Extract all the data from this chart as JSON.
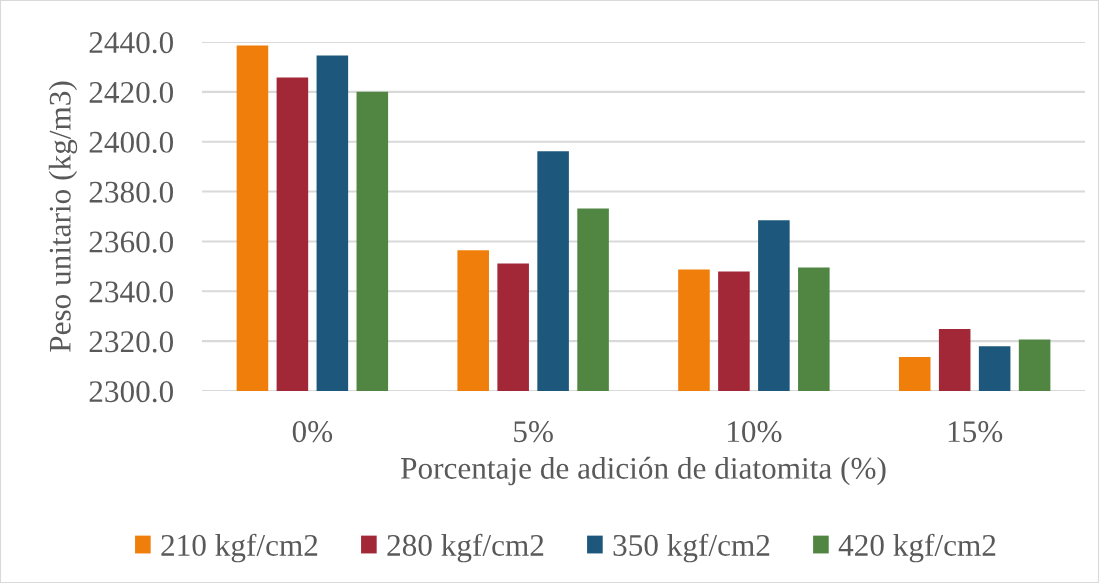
{
  "chart_data": {
    "type": "bar",
    "xlabel": "Porcentaje de adición de diatomita (%)",
    "ylabel": "Peso unitario (kg/m3)",
    "categories": [
      "0%",
      "5%",
      "10%",
      "15%"
    ],
    "series": [
      {
        "name": "210 kgf/cm2",
        "color": "#ef7f0a",
        "values": [
          2438.6,
          2356.5,
          2348.7,
          2313.6
        ]
      },
      {
        "name": "280 kgf/cm2",
        "color": "#a22838",
        "values": [
          2425.8,
          2351.1,
          2347.9,
          2324.9
        ]
      },
      {
        "name": "350 kgf/cm2",
        "color": "#1d587c",
        "values": [
          2434.6,
          2396.2,
          2368.5,
          2318.0
        ]
      },
      {
        "name": "420 kgf/cm2",
        "color": "#508642",
        "values": [
          2420.0,
          2373.2,
          2349.5,
          2320.7
        ]
      }
    ],
    "ylim": [
      2300,
      2440
    ],
    "yticks": [
      {
        "value": 2300,
        "label": "2300.0"
      },
      {
        "value": 2320,
        "label": "2320.0"
      },
      {
        "value": 2340,
        "label": "2340.0"
      },
      {
        "value": 2360,
        "label": "2360.0"
      },
      {
        "value": 2380,
        "label": "2380.0"
      },
      {
        "value": 2400,
        "label": "2400.0"
      },
      {
        "value": 2420,
        "label": "2420.0"
      },
      {
        "value": 2440,
        "label": "2440.0"
      }
    ],
    "grid": "y",
    "legend": "bottom"
  }
}
